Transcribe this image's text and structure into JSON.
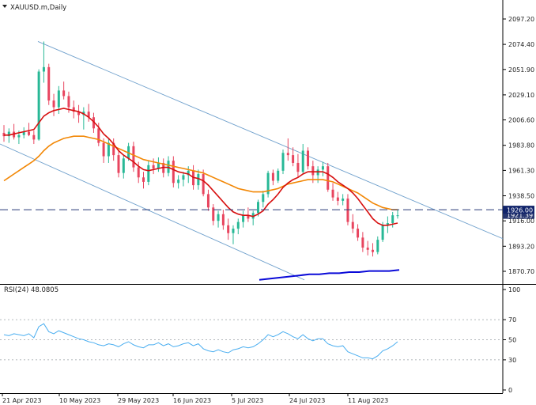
{
  "header": {
    "symbol": "XAUUSD.m,Daily",
    "rsi_label": "RSI(24) 48.0805"
  },
  "chart_data": [
    {
      "type": "candlestick",
      "title": "XAUUSD.m,Daily",
      "x_ticks": [
        "21 Apr 2023",
        "10 May 2023",
        "29 May 2023",
        "16 Jun 2023",
        "5 Jul 2023",
        "24 Jul 2023",
        "11 Aug 2023"
      ],
      "y_ticks": [
        "2097.20",
        "2074.40",
        "2051.90",
        "2029.10",
        "2006.60",
        "1983.80",
        "1961.30",
        "1938.50",
        "1916.00",
        "1893.20",
        "1870.70"
      ],
      "ylim": [
        1863,
        2110
      ],
      "current_price": "1926.00",
      "price_label_2": "1921.39",
      "candles_ohlc": [
        [
          1995,
          2002,
          1987,
          1992
        ],
        [
          1992,
          1999,
          1986,
          1996
        ],
        [
          1996,
          2003,
          1989,
          1991
        ],
        [
          1991,
          1997,
          1985,
          1993
        ],
        [
          1993,
          2000,
          1990,
          1996
        ],
        [
          1996,
          2004,
          1992,
          1993
        ],
        [
          1993,
          1997,
          1985,
          1989
        ],
        [
          1989,
          2052,
          1988,
          2050
        ],
        [
          2050,
          2077,
          2040,
          2054
        ],
        [
          2054,
          2057,
          2020,
          2024
        ],
        [
          2024,
          2030,
          2010,
          2018
        ],
        [
          2018,
          2037,
          2012,
          2033
        ],
        [
          2033,
          2041,
          2025,
          2028
        ],
        [
          2028,
          2032,
          2013,
          2018
        ],
        [
          2018,
          2024,
          2008,
          2014
        ],
        [
          2014,
          2020,
          2004,
          2011
        ],
        [
          2011,
          2018,
          1998,
          2014
        ],
        [
          2014,
          2021,
          2005,
          2009
        ],
        [
          2009,
          2013,
          1995,
          1999
        ],
        [
          1999,
          2004,
          1983,
          1986
        ],
        [
          1986,
          1990,
          1968,
          1974
        ],
        [
          1974,
          1990,
          1968,
          1986
        ],
        [
          1986,
          1990,
          1970,
          1975
        ],
        [
          1975,
          1980,
          1955,
          1959
        ],
        [
          1959,
          1975,
          1954,
          1972
        ],
        [
          1972,
          1986,
          1970,
          1983
        ],
        [
          1983,
          1987,
          1960,
          1964
        ],
        [
          1964,
          1969,
          1950,
          1955
        ],
        [
          1955,
          1960,
          1945,
          1951
        ],
        [
          1951,
          1970,
          1948,
          1966
        ],
        [
          1966,
          1972,
          1958,
          1963
        ],
        [
          1963,
          1973,
          1960,
          1968
        ],
        [
          1968,
          1972,
          1955,
          1959
        ],
        [
          1959,
          1974,
          1956,
          1970
        ],
        [
          1970,
          1974,
          1946,
          1950
        ],
        [
          1950,
          1957,
          1945,
          1953
        ],
        [
          1953,
          1960,
          1947,
          1957
        ],
        [
          1957,
          1965,
          1950,
          1961
        ],
        [
          1961,
          1966,
          1944,
          1948
        ],
        [
          1948,
          1962,
          1944,
          1958
        ],
        [
          1958,
          1962,
          1938,
          1940
        ],
        [
          1940,
          1944,
          1925,
          1928
        ],
        [
          1928,
          1931,
          1912,
          1916
        ],
        [
          1916,
          1925,
          1910,
          1922
        ],
        [
          1922,
          1926,
          1908,
          1912
        ],
        [
          1912,
          1918,
          1899,
          1905
        ],
        [
          1905,
          1912,
          1895,
          1909
        ],
        [
          1909,
          1918,
          1904,
          1915
        ],
        [
          1915,
          1925,
          1910,
          1921
        ],
        [
          1921,
          1928,
          1915,
          1918
        ],
        [
          1918,
          1925,
          1912,
          1923
        ],
        [
          1923,
          1935,
          1920,
          1933
        ],
        [
          1933,
          1943,
          1928,
          1940
        ],
        [
          1940,
          1961,
          1937,
          1959
        ],
        [
          1959,
          1962,
          1948,
          1952
        ],
        [
          1952,
          1963,
          1950,
          1961
        ],
        [
          1961,
          1980,
          1958,
          1977
        ],
        [
          1977,
          1990,
          1970,
          1975
        ],
        [
          1975,
          1982,
          1965,
          1968
        ],
        [
          1968,
          1976,
          1955,
          1960
        ],
        [
          1960,
          1985,
          1958,
          1979
        ],
        [
          1979,
          1982,
          1962,
          1965
        ],
        [
          1965,
          1970,
          1950,
          1957
        ],
        [
          1957,
          1965,
          1950,
          1962
        ],
        [
          1962,
          1969,
          1956,
          1965
        ],
        [
          1965,
          1968,
          1942,
          1944
        ],
        [
          1944,
          1950,
          1934,
          1937
        ],
        [
          1937,
          1942,
          1930,
          1934
        ],
        [
          1934,
          1940,
          1930,
          1936
        ],
        [
          1936,
          1940,
          1912,
          1915
        ],
        [
          1915,
          1922,
          1905,
          1909
        ],
        [
          1909,
          1913,
          1898,
          1901
        ],
        [
          1901,
          1906,
          1888,
          1892
        ],
        [
          1892,
          1898,
          1885,
          1890
        ],
        [
          1890,
          1896,
          1884,
          1888
        ],
        [
          1888,
          1902,
          1886,
          1899
        ],
        [
          1899,
          1915,
          1897,
          1912
        ],
        [
          1912,
          1920,
          1905,
          1914
        ],
        [
          1914,
          1924,
          1910,
          1921
        ],
        [
          1921,
          1926,
          1918,
          1921
        ]
      ],
      "sma_short": [
        1993,
        1993,
        1994,
        1995,
        1996,
        1997,
        1998,
        2004,
        2010,
        2013,
        2015,
        2016,
        2017,
        2016,
        2015,
        2014,
        2012,
        2009,
        2005,
        2000,
        1994,
        1990,
        1985,
        1979,
        1975,
        1972,
        1969,
        1965,
        1962,
        1961,
        1962,
        1963,
        1964,
        1964,
        1962,
        1960,
        1959,
        1958,
        1955,
        1954,
        1952,
        1948,
        1943,
        1938,
        1933,
        1928,
        1924,
        1922,
        1921,
        1921,
        1920,
        1922,
        1925,
        1931,
        1935,
        1940,
        1946,
        1950,
        1953,
        1955,
        1958,
        1960,
        1960,
        1960,
        1960,
        1958,
        1955,
        1951,
        1948,
        1945,
        1941,
        1936,
        1930,
        1924,
        1918,
        1914,
        1912,
        1912,
        1913,
        1914
      ],
      "sma_long": [
        1952,
        1955,
        1958,
        1961,
        1964,
        1967,
        1970,
        1974,
        1979,
        1983,
        1986,
        1988,
        1990,
        1991,
        1992,
        1992,
        1992,
        1991,
        1990,
        1989,
        1987,
        1985,
        1983,
        1981,
        1979,
        1977,
        1975,
        1973,
        1971,
        1970,
        1969,
        1968,
        1967,
        1966,
        1965,
        1964,
        1963,
        1962,
        1961,
        1960,
        1959,
        1957,
        1955,
        1953,
        1951,
        1949,
        1947,
        1945,
        1944,
        1943,
        1942,
        1942,
        1942,
        1943,
        1944,
        1945,
        1947,
        1949,
        1950,
        1951,
        1952,
        1953,
        1953,
        1953,
        1953,
        1952,
        1951,
        1949,
        1947,
        1945,
        1943,
        1941,
        1938,
        1935,
        1932,
        1930,
        1928,
        1927,
        1926,
        1926
      ],
      "sma_200": [
        1863,
        1864,
        1865,
        1866,
        1867,
        1868,
        1868,
        1869,
        1869,
        1870,
        1870,
        1871,
        1871,
        1871,
        1872
      ],
      "annotations": [
        "descending channel (upper)",
        "descending channel (lower)",
        "dashed level 1926.00"
      ]
    },
    {
      "type": "line",
      "title": "RSI(24) 48.0805",
      "y_ticks": [
        "100",
        "70",
        "50",
        "30",
        "0"
      ],
      "ylim": [
        0,
        100
      ],
      "levels": [
        70,
        50,
        30
      ],
      "values": [
        55,
        54,
        56,
        55,
        54,
        56,
        52,
        63,
        66,
        58,
        56,
        59,
        57,
        55,
        53,
        51,
        50,
        48,
        47,
        45,
        44,
        46,
        45,
        43,
        46,
        48,
        45,
        43,
        42,
        45,
        45,
        47,
        44,
        46,
        43,
        44,
        46,
        47,
        44,
        46,
        41,
        39,
        38,
        40,
        38,
        37,
        40,
        41,
        43,
        42,
        43,
        46,
        50,
        55,
        53,
        55,
        58,
        56,
        53,
        51,
        55,
        51,
        49,
        51,
        51,
        46,
        44,
        43,
        44,
        38,
        36,
        34,
        32,
        32,
        31,
        34,
        39,
        41,
        44,
        48
      ]
    }
  ],
  "colors": {
    "bull": "#28b896",
    "bear": "#e8455f",
    "sma_short": "#d70f0f",
    "sma_long": "#f28705",
    "sma_200": "#0a0ad8",
    "rsi": "#4aaef0",
    "channel": "#6fa0cc",
    "level_line": "#283a78"
  }
}
